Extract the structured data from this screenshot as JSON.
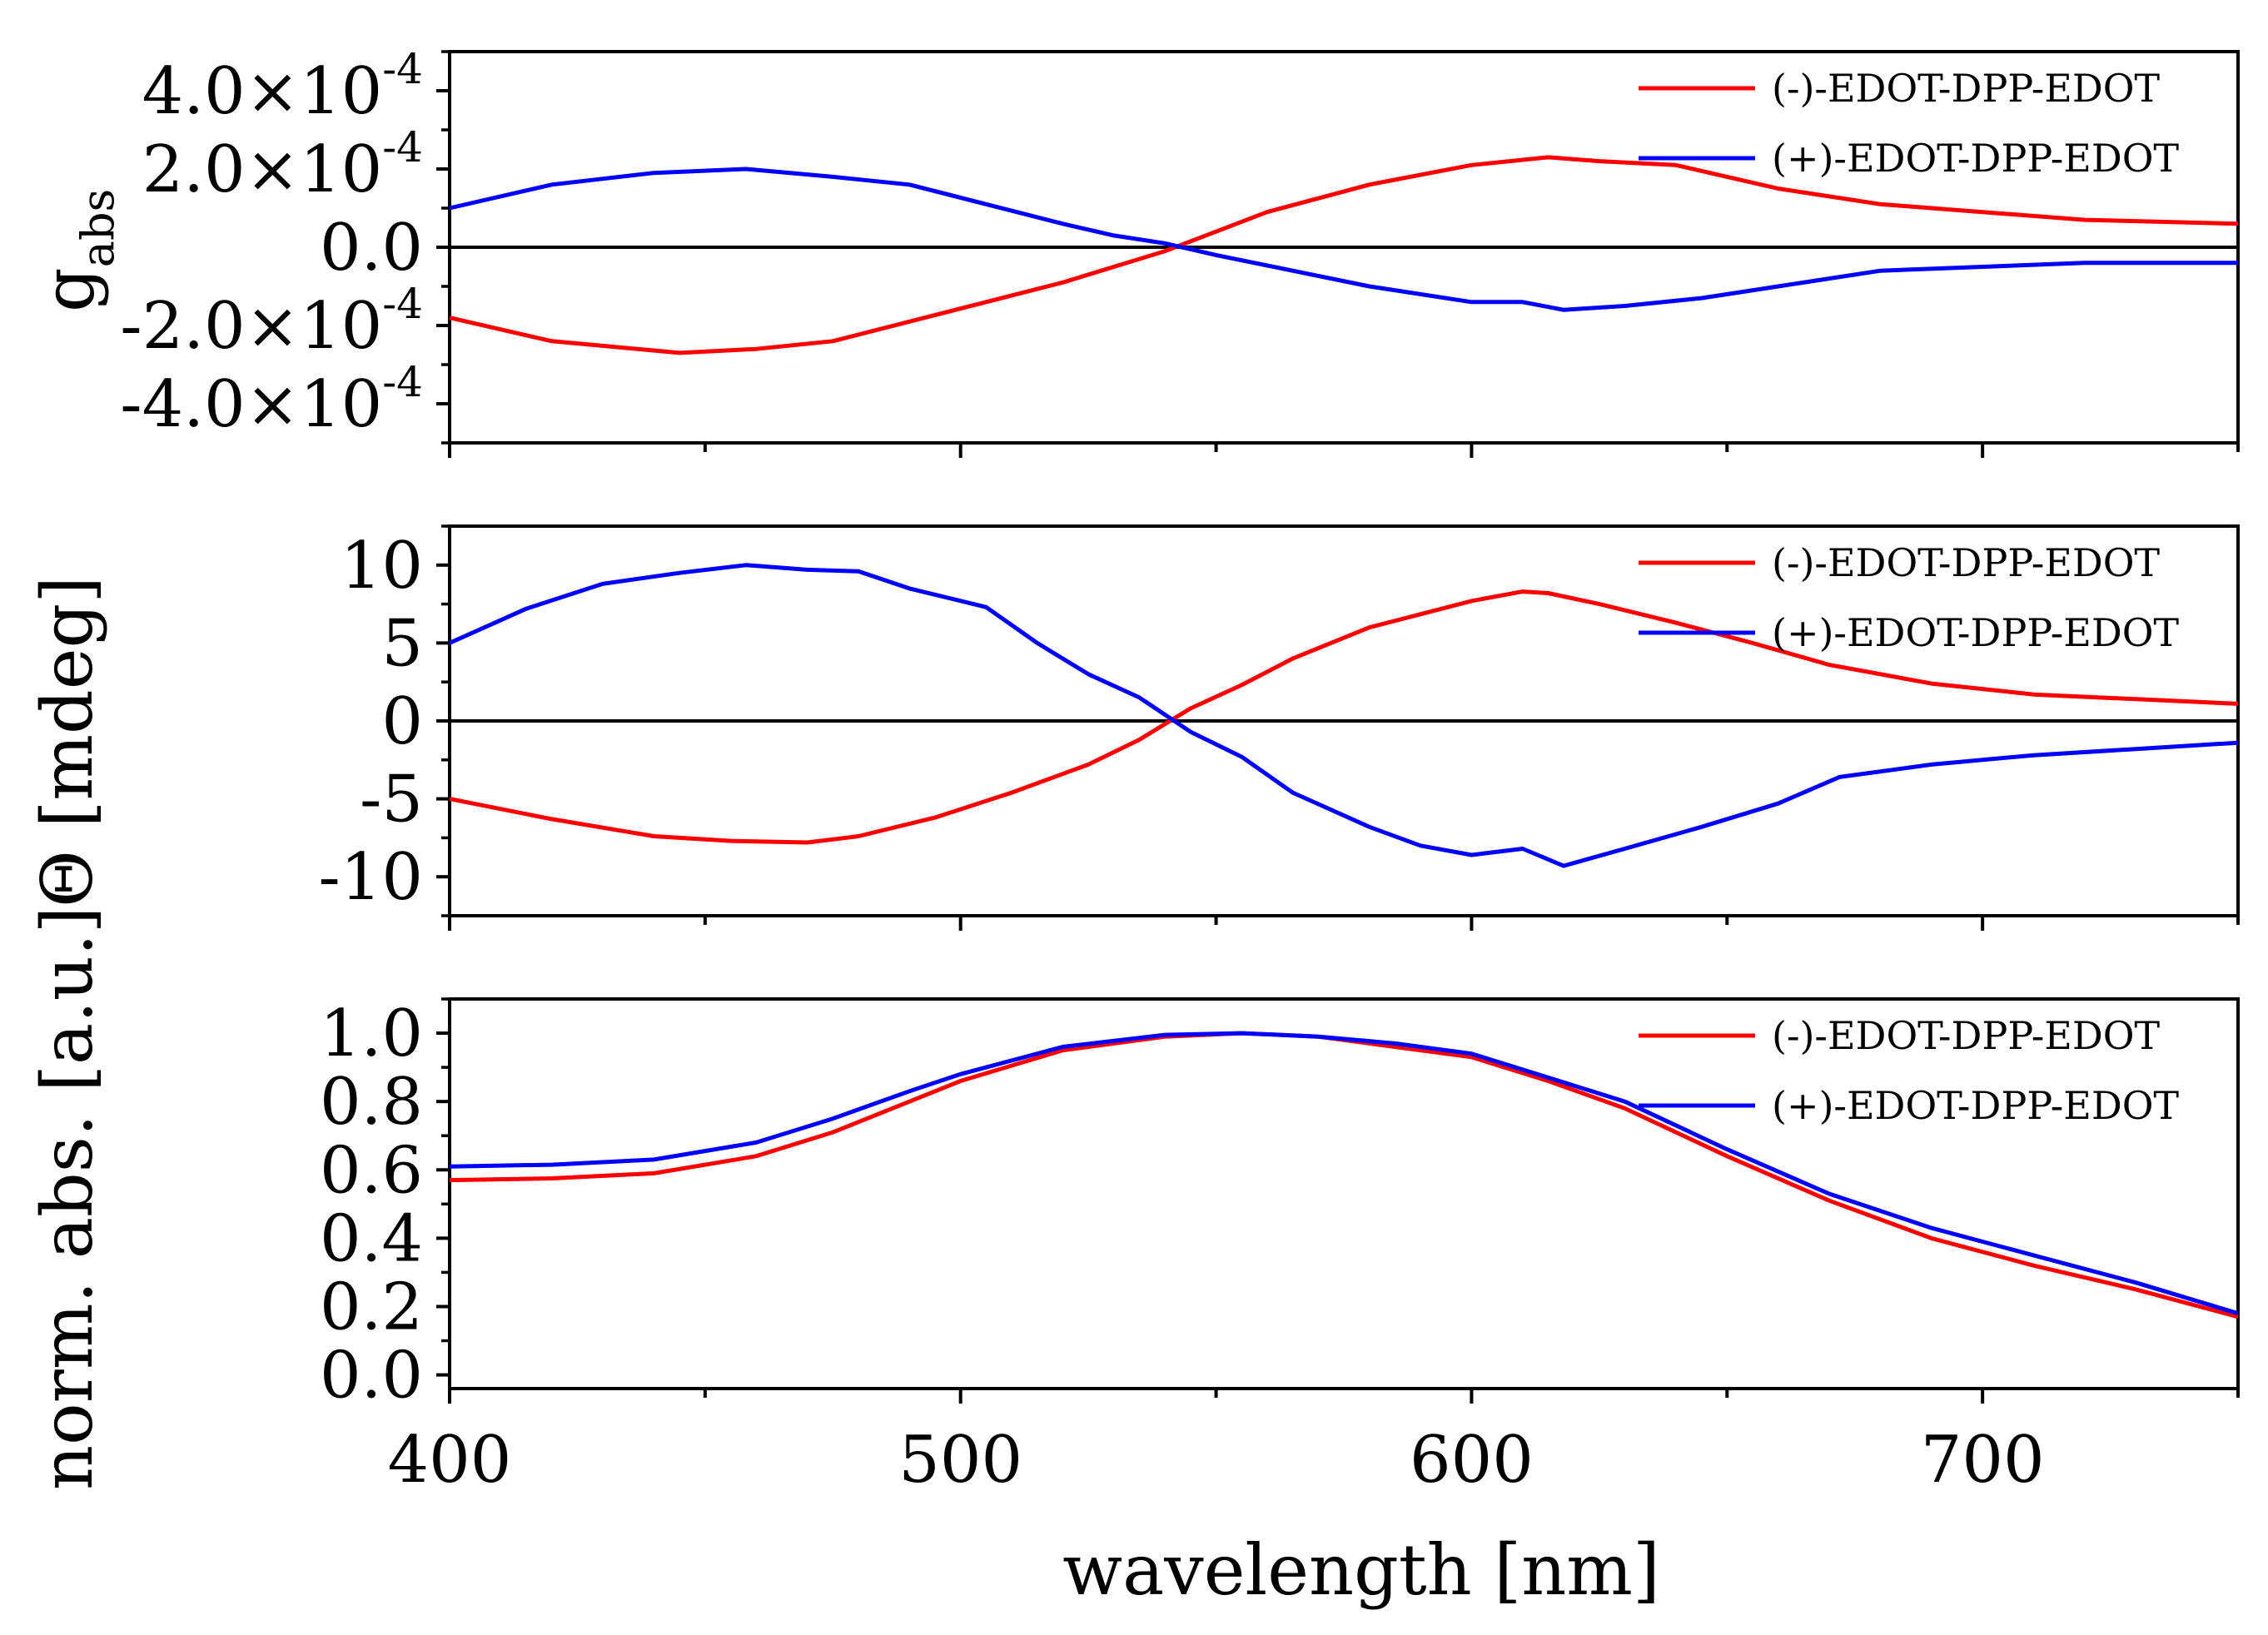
{
  "chart_data": [
    {
      "type": "line",
      "panel": "top",
      "ylabel": "g",
      "ylabel_sub": "abs",
      "xlim": [
        400,
        750
      ],
      "ylim": [
        -0.0005,
        0.0005
      ],
      "yticks": [
        -0.0004,
        -0.0002,
        0.0,
        0.0002,
        0.0004
      ],
      "ytick_labels": [
        {
          "mant": "-4.0×10",
          "exp": "-4"
        },
        {
          "mant": "-2.0×10",
          "exp": "-4"
        },
        {
          "mant": "0.0",
          "exp": ""
        },
        {
          "mant": "2.0×10",
          "exp": "-4"
        },
        {
          "mant": "4.0×10",
          "exp": "-4"
        }
      ],
      "zero_line": true,
      "legend_position": "top-right",
      "series": [
        {
          "name": "(-)-EDOT-DPP-EDOT",
          "color": "#ff0000",
          "x": [
            400,
            420,
            445,
            460,
            475,
            490,
            505,
            520,
            530,
            540,
            550,
            560,
            580,
            600,
            615,
            625,
            640,
            650,
            660,
            680,
            700,
            720,
            750
          ],
          "y": [
            -0.00018,
            -0.00024,
            -0.00027,
            -0.00026,
            -0.00024,
            -0.00019,
            -0.00014,
            -9e-05,
            -5e-05,
            -1e-05,
            4e-05,
            9e-05,
            0.00016,
            0.00021,
            0.00023,
            0.00022,
            0.00021,
            0.00018,
            0.00015,
            0.00011,
            9e-05,
            7e-05,
            6e-05
          ]
        },
        {
          "name": "(+)-EDOT-DPP-EDOT",
          "color": "#0000ff",
          "x": [
            400,
            420,
            440,
            458,
            475,
            490,
            505,
            520,
            530,
            540,
            550,
            565,
            580,
            600,
            610,
            618,
            630,
            645,
            660,
            680,
            700,
            720,
            750
          ],
          "y": [
            0.0001,
            0.00016,
            0.00019,
            0.0002,
            0.00018,
            0.00016,
            0.00011,
            6e-05,
            3e-05,
            1e-05,
            -2e-05,
            -6e-05,
            -0.0001,
            -0.00014,
            -0.00014,
            -0.00016,
            -0.00015,
            -0.00013,
            -0.0001,
            -6e-05,
            -5e-05,
            -4e-05,
            -4e-05
          ]
        }
      ]
    },
    {
      "type": "line",
      "panel": "middle",
      "ylabel": "Θ [mdeg]",
      "xlim": [
        400,
        750
      ],
      "ylim": [
        -12.5,
        12.5
      ],
      "yticks": [
        -10,
        -5,
        0,
        5,
        10
      ],
      "ytick_labels": [
        "-10",
        "-5",
        "0",
        "5",
        "10"
      ],
      "zero_line": true,
      "legend_position": "top-right",
      "series": [
        {
          "name": "(-)-EDOT-DPP-EDOT",
          "color": "#ff0000",
          "x": [
            400,
            420,
            440,
            455,
            470,
            480,
            495,
            510,
            525,
            535,
            545,
            555,
            565,
            580,
            600,
            610,
            615,
            625,
            640,
            655,
            670,
            690,
            710,
            730,
            750
          ],
          "y": [
            -5,
            -6.3,
            -7.4,
            -7.7,
            -7.8,
            -7.4,
            -6.2,
            -4.6,
            -2.8,
            -1.2,
            0.8,
            2.3,
            4.0,
            6.0,
            7.7,
            8.3,
            8.2,
            7.5,
            6.3,
            5.0,
            3.6,
            2.4,
            1.7,
            1.4,
            1.1
          ]
        },
        {
          "name": "(+)-EDOT-DPP-EDOT",
          "color": "#0000ff",
          "x": [
            400,
            415,
            430,
            445,
            458,
            470,
            480,
            490,
            505,
            515,
            525,
            535,
            545,
            555,
            565,
            580,
            590,
            600,
            610,
            618,
            630,
            645,
            660,
            672,
            690,
            710,
            730,
            750
          ],
          "y": [
            5,
            7.2,
            8.8,
            9.5,
            10.0,
            9.7,
            9.6,
            8.5,
            7.3,
            5.0,
            3.0,
            1.5,
            -0.7,
            -2.3,
            -4.6,
            -6.8,
            -8.0,
            -8.6,
            -8.2,
            -9.3,
            -8.2,
            -6.8,
            -5.3,
            -3.6,
            -2.8,
            -2.2,
            -1.8,
            -1.4
          ]
        }
      ]
    },
    {
      "type": "line",
      "panel": "bottom",
      "ylabel": "norm. abs. [a.u.]",
      "xlabel": "wavelength [nm]",
      "xlim": [
        400,
        750
      ],
      "xticks": [
        400,
        500,
        600,
        700
      ],
      "xtick_labels": [
        "400",
        "500",
        "600",
        "700"
      ],
      "ylim": [
        -0.04,
        1.1
      ],
      "yticks": [
        0.0,
        0.2,
        0.4,
        0.6,
        0.8,
        1.0
      ],
      "ytick_labels": [
        "0.0",
        "0.2",
        "0.4",
        "0.6",
        "0.8",
        "1.0"
      ],
      "zero_line": false,
      "legend_position": "top-right",
      "series": [
        {
          "name": "(-)-EDOT-DPP-EDOT",
          "color": "#ff0000",
          "x": [
            400,
            420,
            440,
            460,
            475,
            490,
            500,
            520,
            540,
            555,
            570,
            585,
            600,
            615,
            630,
            650,
            670,
            690,
            710,
            730,
            750
          ],
          "y": [
            0.57,
            0.575,
            0.59,
            0.64,
            0.71,
            0.8,
            0.86,
            0.95,
            0.99,
            1.0,
            0.99,
            0.96,
            0.93,
            0.86,
            0.78,
            0.64,
            0.51,
            0.4,
            0.32,
            0.25,
            0.17
          ]
        },
        {
          "name": "(+)-EDOT-DPP-EDOT",
          "color": "#0000ff",
          "x": [
            400,
            420,
            440,
            460,
            475,
            490,
            500,
            520,
            540,
            555,
            570,
            585,
            600,
            615,
            630,
            650,
            670,
            690,
            710,
            730,
            750
          ],
          "y": [
            0.61,
            0.615,
            0.63,
            0.68,
            0.75,
            0.83,
            0.88,
            0.96,
            0.995,
            1.0,
            0.99,
            0.97,
            0.94,
            0.87,
            0.8,
            0.66,
            0.53,
            0.43,
            0.35,
            0.27,
            0.18
          ]
        }
      ]
    }
  ]
}
